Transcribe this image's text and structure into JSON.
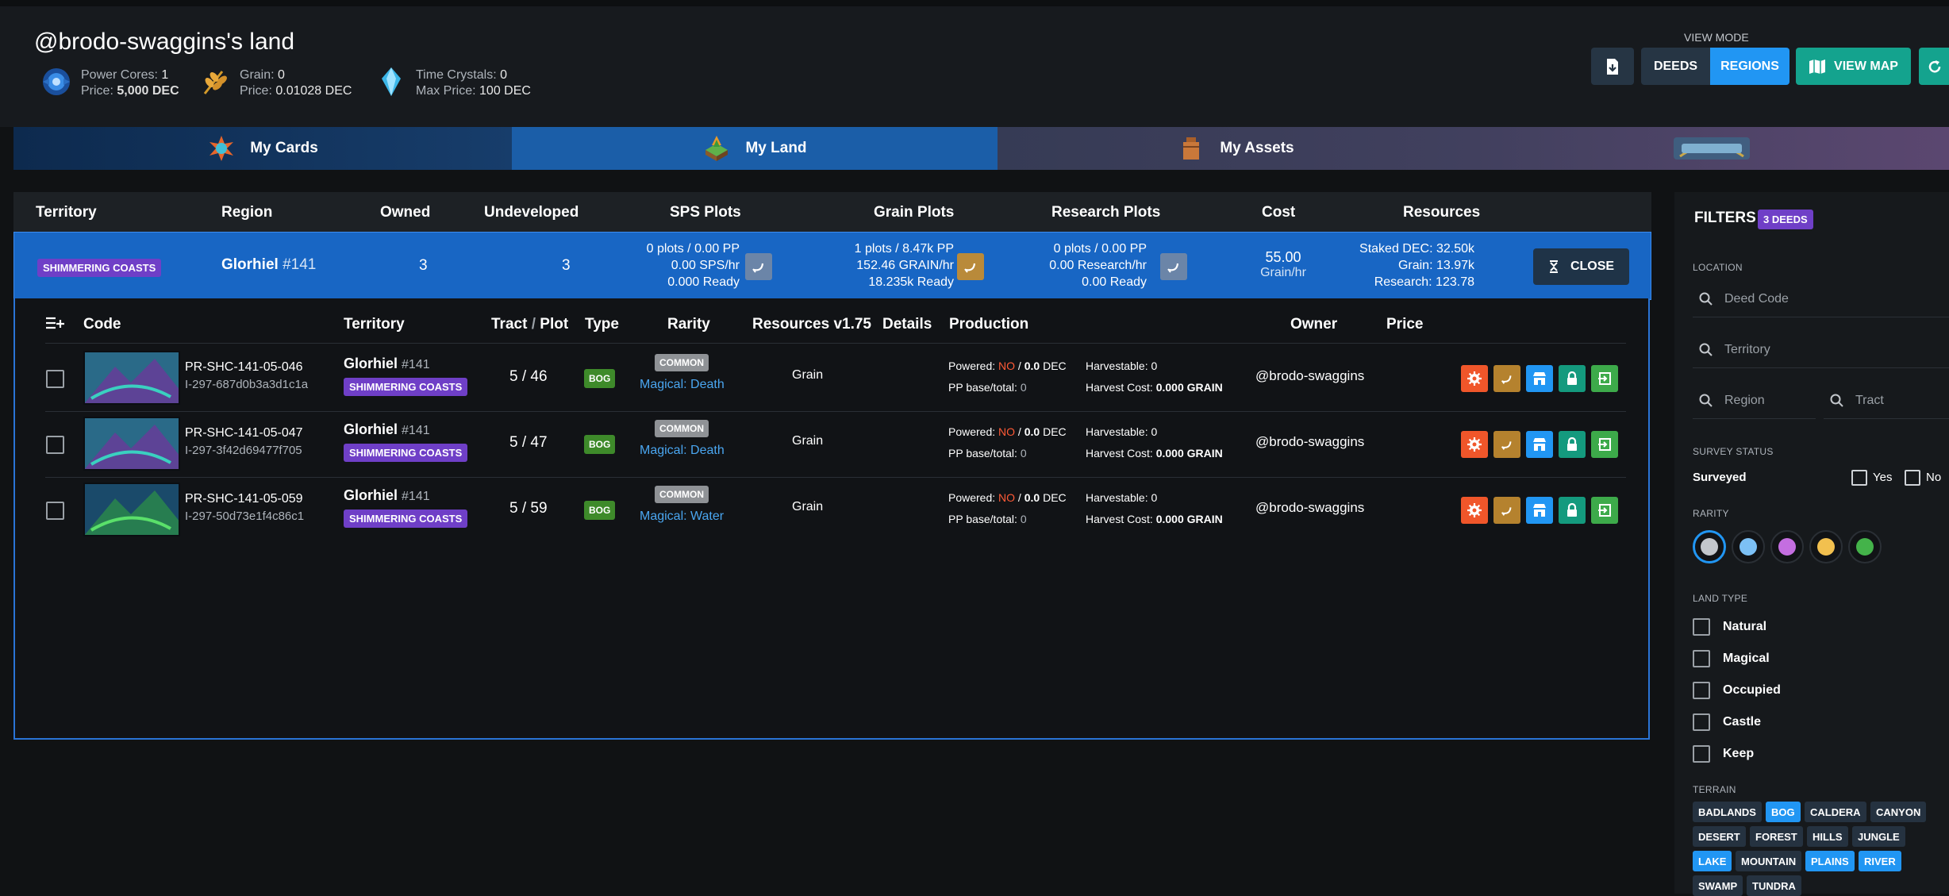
{
  "header": {
    "title": "@brodo-swaggins's land",
    "stats": [
      {
        "label": "Power Cores:",
        "value": "1",
        "price_label": "Price:",
        "price": "5,000 DEC",
        "icon": "power-core-icon"
      },
      {
        "label": "Grain:",
        "value": "0",
        "price_label": "Price:",
        "price": "0.01028 DEC",
        "icon": "grain-icon"
      },
      {
        "label": "Time Crystals:",
        "value": "0",
        "price_label": "Max Price:",
        "price": "100 DEC",
        "icon": "time-crystal-icon"
      }
    ],
    "view_mode_label": "VIEW MODE",
    "buttons": {
      "deeds": "DEEDS",
      "regions": "REGIONS",
      "view_map": "VIEW MAP"
    },
    "colors": {
      "regions": "#2196f3",
      "deeds": "#263544",
      "view_map": "#14a38e"
    }
  },
  "tabs": [
    {
      "label": "My Cards",
      "icon": "my-cards-icon"
    },
    {
      "label": "My Land",
      "icon": "my-land-icon"
    },
    {
      "label": "My Assets",
      "icon": "my-assets-icon"
    },
    {
      "label": "",
      "icon": "soulkeep-logo"
    }
  ],
  "table": {
    "columns": [
      "Territory",
      "Region",
      "Owned",
      "Undeveloped",
      "SPS Plots",
      "Grain Plots",
      "Research Plots",
      "Cost",
      "Resources"
    ],
    "row": {
      "territory": "SHIMMERING COASTS",
      "region_name": "Glorhiel",
      "region_num": "#141",
      "owned": "3",
      "undeveloped": "3",
      "sps": [
        "0 plots / 0.00 PP",
        "0.00 SPS/hr",
        "0.000 Ready"
      ],
      "grain": [
        "1 plots / 8.47k PP",
        "152.46 GRAIN/hr",
        "18.235k Ready"
      ],
      "research": [
        "0 plots / 0.00 PP",
        "0.00 Research/hr",
        "0.00 Ready"
      ],
      "cost_value": "55.00",
      "cost_unit": "Grain/hr",
      "resources": [
        "Staked DEC: 32.50k",
        "Grain: 13.97k",
        "Research: 123.78"
      ],
      "close_label": "CLOSE"
    }
  },
  "deeds": {
    "columns": {
      "code": "Code",
      "territory": "Territory",
      "tract": "Tract",
      "plot": "Plot",
      "type": "Type",
      "rarity": "Rarity",
      "resources": "Resources v1.75",
      "details": "Details",
      "production": "Production",
      "owner": "Owner",
      "price": "Price"
    },
    "rows": [
      {
        "code": "PR-SHC-141-05-046",
        "id": "I-297-687d0b3a3d1c1a",
        "region": "Glorhiel",
        "region_num": "#141",
        "territory": "SHIMMERING COASTS",
        "tract": "5",
        "plot": "46",
        "type": "BOG",
        "rarity": "COMMON",
        "magic": "Magical: Death",
        "resource": "Grain",
        "powered_label": "Powered:",
        "powered": "NO",
        "powered_dec": "0.0",
        "dec_unit": "DEC",
        "pp_label": "PP base/total:",
        "pp": "0",
        "harvestable_label": "Harvestable:",
        "harvestable": "0",
        "harvest_cost_label": "Harvest Cost:",
        "harvest_cost": "0.000 GRAIN",
        "owner": "@brodo-swaggins"
      },
      {
        "code": "PR-SHC-141-05-047",
        "id": "I-297-3f42d69477f705",
        "region": "Glorhiel",
        "region_num": "#141",
        "territory": "SHIMMERING COASTS",
        "tract": "5",
        "plot": "47",
        "type": "BOG",
        "rarity": "COMMON",
        "magic": "Magical: Death",
        "resource": "Grain",
        "powered_label": "Powered:",
        "powered": "NO",
        "powered_dec": "0.0",
        "dec_unit": "DEC",
        "pp_label": "PP base/total:",
        "pp": "0",
        "harvestable_label": "Harvestable:",
        "harvestable": "0",
        "harvest_cost_label": "Harvest Cost:",
        "harvest_cost": "0.000 GRAIN",
        "owner": "@brodo-swaggins"
      },
      {
        "code": "PR-SHC-141-05-059",
        "id": "I-297-50d73e1f4c86c1",
        "region": "Glorhiel",
        "region_num": "#141",
        "territory": "SHIMMERING COASTS",
        "tract": "5",
        "plot": "59",
        "type": "BOG",
        "rarity": "COMMON",
        "magic": "Magical: Water",
        "resource": "Grain",
        "powered_label": "Powered:",
        "powered": "NO",
        "powered_dec": "0.0",
        "dec_unit": "DEC",
        "pp_label": "PP base/total:",
        "pp": "0",
        "harvestable_label": "Harvestable:",
        "harvestable": "0",
        "harvest_cost_label": "Harvest Cost:",
        "harvest_cost": "0.000 GRAIN",
        "owner": "@brodo-swaggins"
      }
    ]
  },
  "filters": {
    "title": "FILTERS",
    "badge": "3 DEEDS",
    "location_label": "LOCATION",
    "deed_code_placeholder": "Deed Code",
    "territory_placeholder": "Territory",
    "region_placeholder": "Region",
    "tract_placeholder": "Tract",
    "survey_label": "SURVEY STATUS",
    "surveyed_label": "Surveyed",
    "yes_label": "Yes",
    "no_label": "No",
    "rarity_label": "RARITY",
    "rarity_colors": [
      "#c3c7cc",
      "#7cc0f5",
      "#c46ee0",
      "#f2c04f",
      "#44b34a"
    ],
    "land_type_label": "LAND TYPE",
    "land_types": [
      "Natural",
      "Magical",
      "Occupied",
      "Castle",
      "Keep"
    ],
    "terrain_label": "TERRAIN",
    "terrains": [
      {
        "name": "BADLANDS",
        "active": false
      },
      {
        "name": "BOG",
        "active": true
      },
      {
        "name": "CALDERA",
        "active": false
      },
      {
        "name": "CANYON",
        "active": false
      },
      {
        "name": "DESERT",
        "active": false
      },
      {
        "name": "FOREST",
        "active": false
      },
      {
        "name": "HILLS",
        "active": false
      },
      {
        "name": "JUNGLE",
        "active": false
      },
      {
        "name": "LAKE",
        "active": true
      },
      {
        "name": "MOUNTAIN",
        "active": false
      },
      {
        "name": "PLAINS",
        "active": true
      },
      {
        "name": "RIVER",
        "active": true
      },
      {
        "name": "SWAMP",
        "active": false
      },
      {
        "name": "TUNDRA",
        "active": false
      }
    ]
  }
}
